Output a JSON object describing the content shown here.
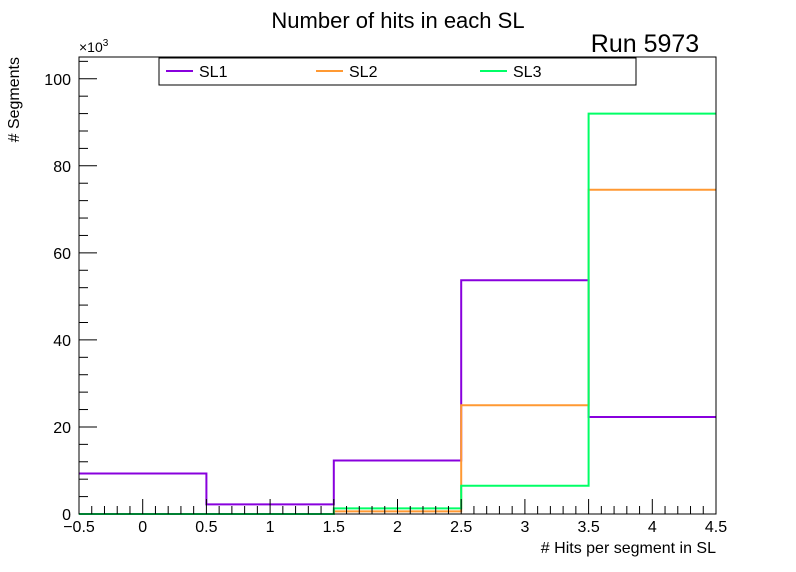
{
  "chart_data": {
    "type": "histogram",
    "title": "Number of hits in each SL",
    "run_label": "Run 5973",
    "xlabel": "# Hits per segment in SL",
    "ylabel": "# Segments",
    "y_multiplier_label": "×10",
    "y_multiplier_exp": "3",
    "xlim": [
      -0.5,
      4.5
    ],
    "ylim": [
      0,
      105
    ],
    "x_ticks": [
      -0.5,
      0,
      0.5,
      1,
      1.5,
      2,
      2.5,
      3,
      3.5,
      4,
      4.5
    ],
    "x_tick_labels": [
      "−0.5",
      "0",
      "0.5",
      "1",
      "1.5",
      "2",
      "2.5",
      "3",
      "3.5",
      "4",
      "4.5"
    ],
    "y_ticks": [
      0,
      20,
      40,
      60,
      80,
      100
    ],
    "y_tick_labels": [
      "0",
      "20",
      "40",
      "60",
      "80",
      "100"
    ],
    "bin_edges": [
      -0.5,
      0.5,
      1.5,
      2.5,
      3.5,
      4.5
    ],
    "series": [
      {
        "name": "SL1",
        "color": "#8800dd",
        "values": [
          9.3,
          2.2,
          12.3,
          53.7,
          22.3
        ]
      },
      {
        "name": "SL2",
        "color": "#ff9933",
        "values": [
          0.0,
          0.0,
          0.6,
          25.0,
          74.5
        ]
      },
      {
        "name": "SL3",
        "color": "#00ff66",
        "values": [
          0.0,
          0.0,
          1.3,
          6.5,
          92.0
        ]
      }
    ],
    "legend_position": "top"
  }
}
